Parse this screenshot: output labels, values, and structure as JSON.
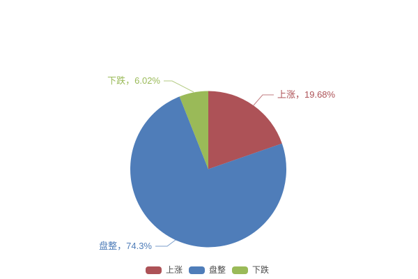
{
  "background_color": "#ffffff",
  "legend_text_color": "#4a4a4a",
  "chart_data": {
    "type": "pie",
    "title": "",
    "start_angle": "top",
    "direction": "clockwise",
    "legend_position": "bottom-center",
    "total": 100.0,
    "series": [
      {
        "id": "rise",
        "name": "上涨",
        "value": 19.68,
        "color": "#AD5257",
        "label": "上涨，19.68%"
      },
      {
        "id": "consolidation",
        "name": "盘整",
        "value": 74.3,
        "color": "#4F7DB9",
        "label": "盘整，74.3%"
      },
      {
        "id": "fall",
        "name": "下跌",
        "value": 6.02,
        "color": "#9ABA58",
        "label": "下跌，6.02%"
      }
    ],
    "legend": [
      "上涨",
      "盘整",
      "下跌"
    ]
  }
}
